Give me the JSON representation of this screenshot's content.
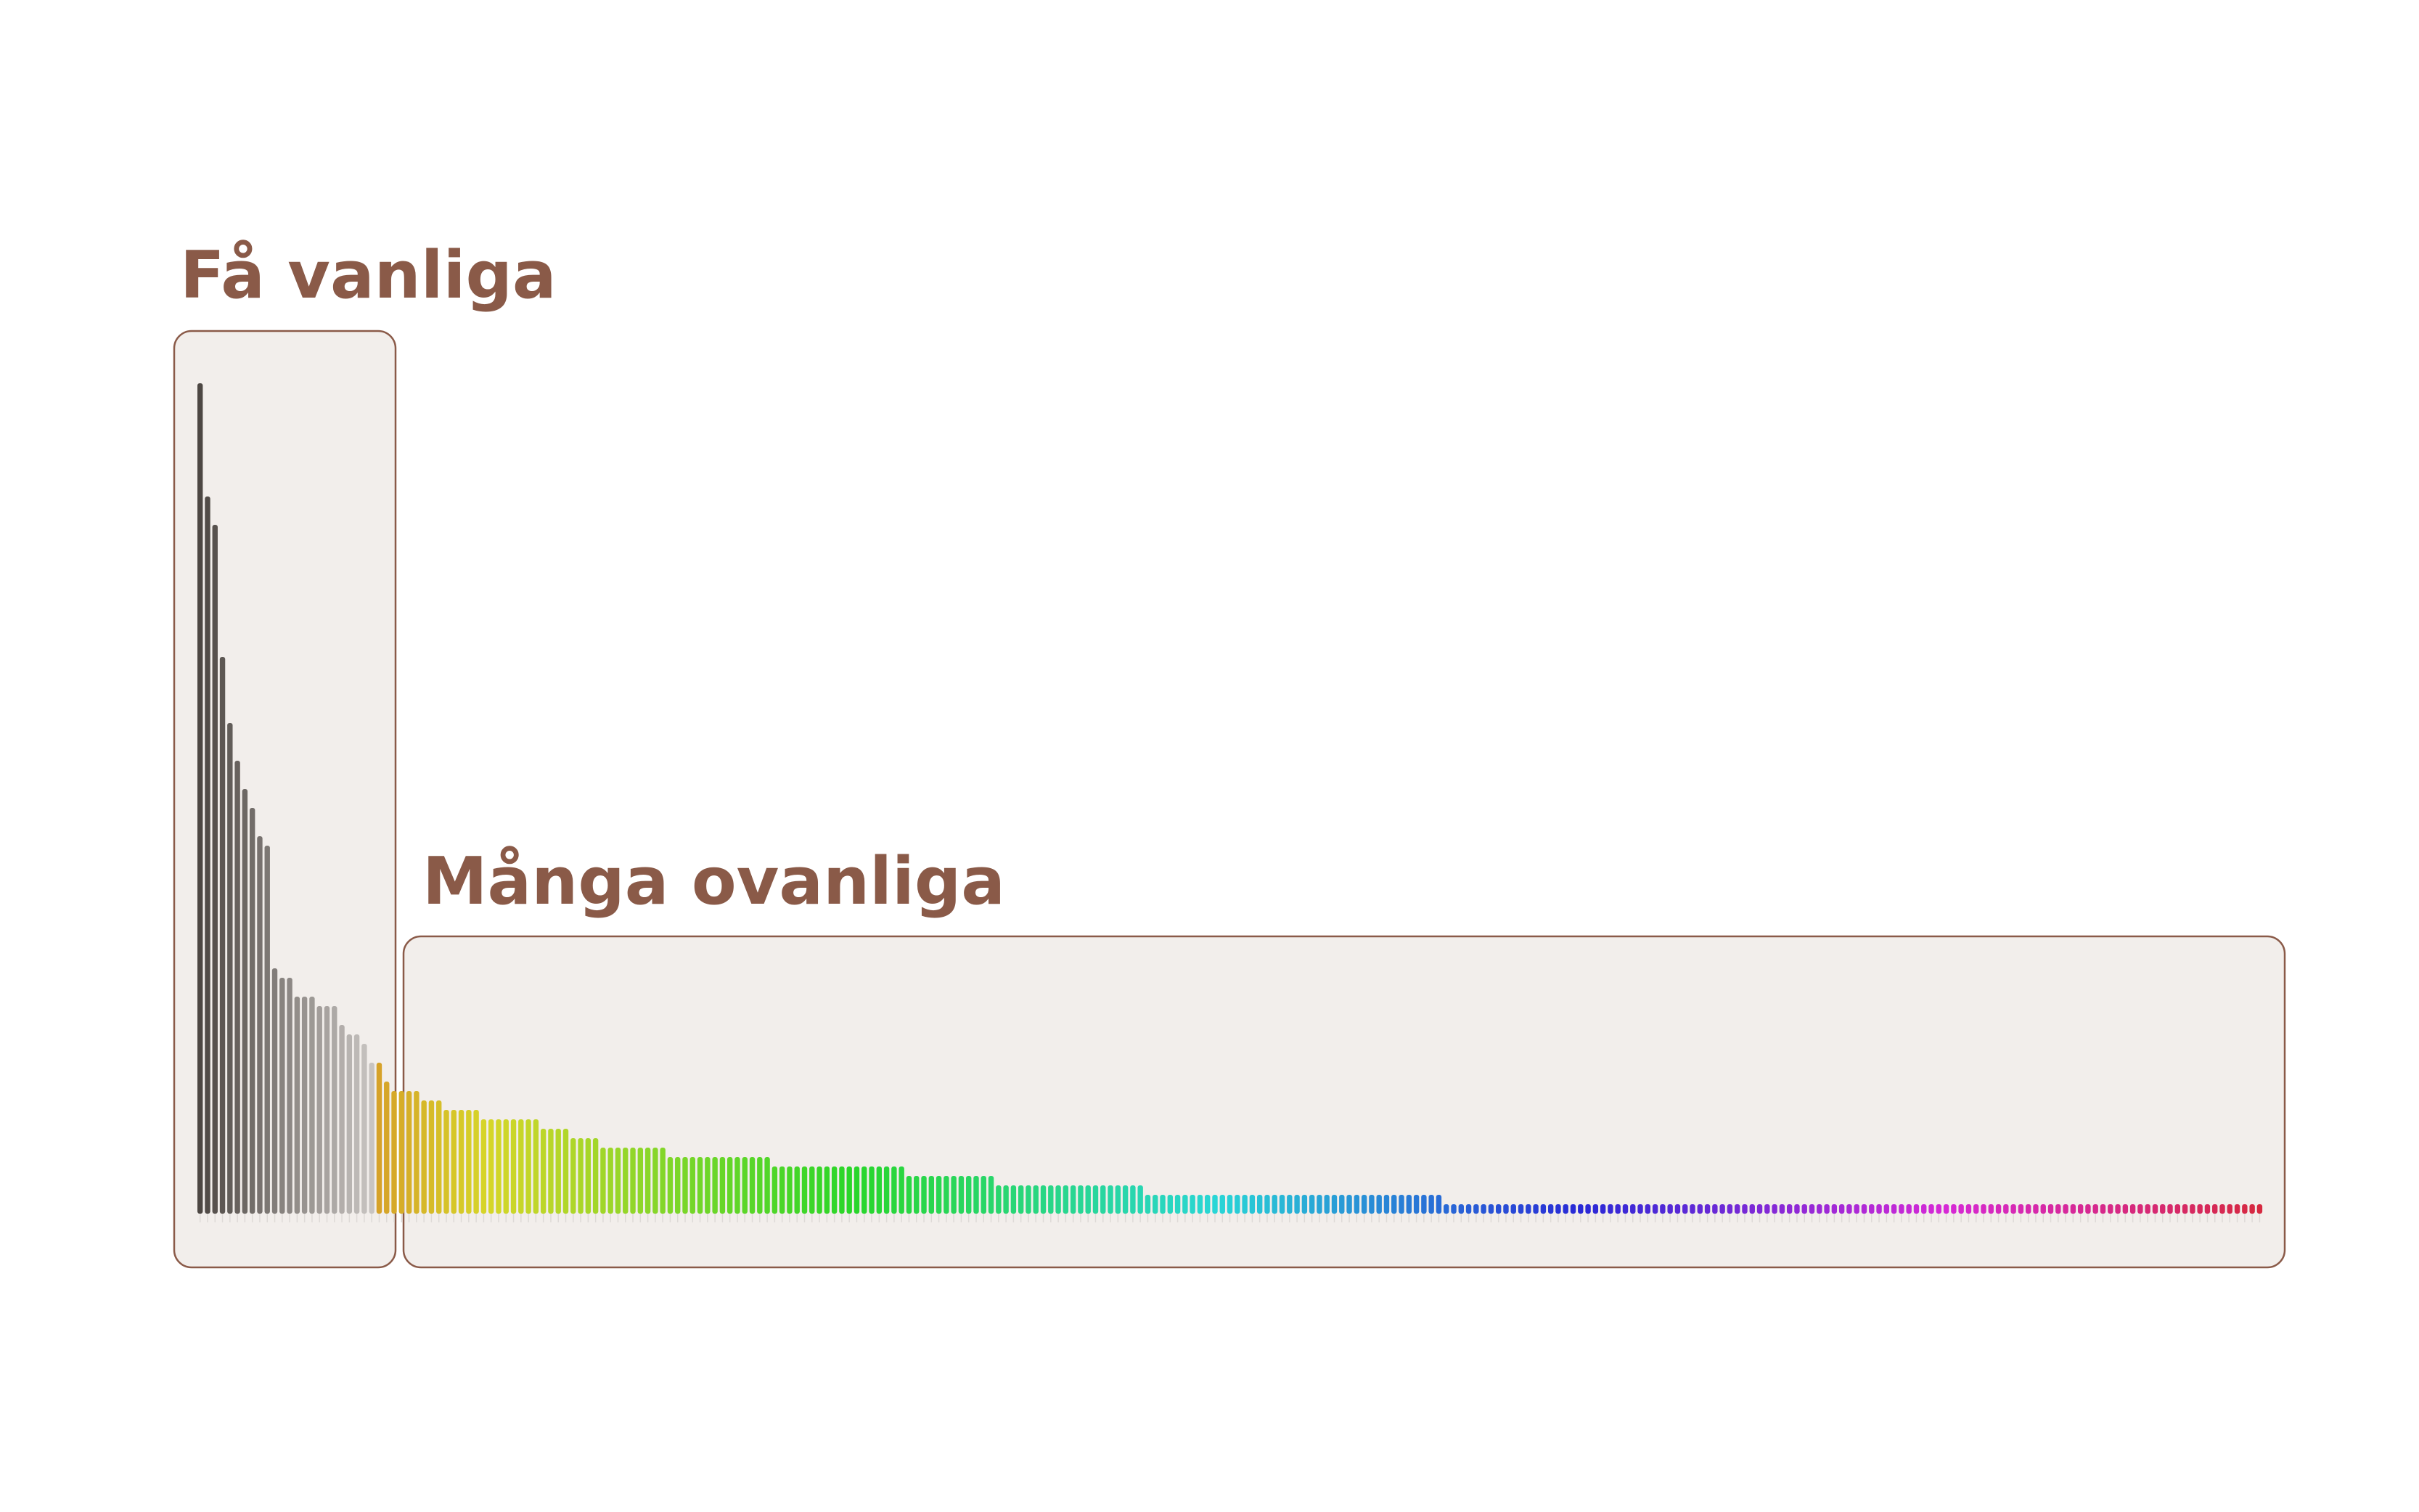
{
  "chart_data": {
    "type": "bar",
    "title": "",
    "xlabel": "",
    "ylabel": "",
    "ylim": [
      0,
      90
    ],
    "grid": false,
    "legend": "none",
    "groups": [
      {
        "label": "Få vanliga",
        "start_index": 0,
        "end_index": 23
      },
      {
        "label": "Många ovanliga",
        "start_index": 24,
        "end_index": 269
      }
    ],
    "values": [
      88,
      76,
      73,
      59,
      52,
      48,
      45,
      43,
      40,
      39,
      26,
      25,
      25,
      23,
      23,
      23,
      22,
      22,
      22,
      20,
      19,
      19,
      18,
      16,
      16,
      14,
      13,
      13,
      13,
      13,
      12,
      12,
      12,
      11,
      11,
      11,
      11,
      11,
      10,
      10,
      10,
      10,
      10,
      10,
      10,
      10,
      9,
      9,
      9,
      9,
      8,
      8,
      8,
      8,
      7,
      7,
      7,
      7,
      7,
      7,
      7,
      7,
      7,
      6,
      6,
      6,
      6,
      6,
      6,
      6,
      6,
      6,
      6,
      6,
      6,
      6,
      6,
      5,
      5,
      5,
      5,
      5,
      5,
      5,
      5,
      5,
      5,
      5,
      5,
      5,
      5,
      5,
      5,
      5,
      5,
      4,
      4,
      4,
      4,
      4,
      4,
      4,
      4,
      4,
      4,
      4,
      4,
      3,
      3,
      3,
      3,
      3,
      3,
      3,
      3,
      3,
      3,
      3,
      3,
      3,
      3,
      3,
      3,
      3,
      3,
      3,
      3,
      2,
      2,
      2,
      2,
      2,
      2,
      2,
      2,
      2,
      2,
      2,
      2,
      2,
      2,
      2,
      2,
      2,
      2,
      2,
      2,
      2,
      2,
      2,
      2,
      2,
      2,
      2,
      2,
      2,
      2,
      2,
      2,
      2,
      2,
      2,
      2,
      2,
      2,
      2,
      2,
      1,
      1,
      1,
      1,
      1,
      1,
      1,
      1,
      1,
      1,
      1,
      1,
      1,
      1,
      1,
      1,
      1,
      1,
      1,
      1,
      1,
      1,
      1,
      1,
      1,
      1,
      1,
      1,
      1,
      1,
      1,
      1,
      1,
      1,
      1,
      1,
      1,
      1,
      1,
      1,
      1,
      1,
      1,
      1,
      1,
      1,
      1,
      1,
      1,
      1,
      1,
      1,
      1,
      1,
      1,
      1,
      1,
      1,
      1,
      1,
      1,
      1,
      1,
      1,
      1,
      1,
      1,
      1,
      1,
      1,
      1,
      1,
      1,
      1,
      1,
      1,
      1,
      1,
      1,
      1,
      1,
      1,
      1,
      1,
      1,
      1,
      1,
      1,
      1,
      1,
      1,
      1,
      1,
      1,
      1,
      1,
      1,
      1,
      1,
      1,
      1,
      1,
      1,
      1,
      1,
      1,
      1,
      1,
      1,
      1
    ],
    "colors": {
      "common_dark": "#4d4743",
      "common_light": "#c8c4c1",
      "label": "#8a5a48",
      "box_fill": "#f2eeeb",
      "box_stroke": "#8a5a48"
    }
  }
}
